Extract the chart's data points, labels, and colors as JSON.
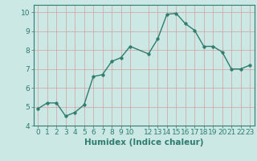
{
  "x": [
    0,
    1,
    2,
    3,
    4,
    5,
    6,
    7,
    8,
    9,
    10,
    12,
    13,
    14,
    15,
    16,
    17,
    18,
    19,
    20,
    21,
    22,
    23
  ],
  "y": [
    4.9,
    5.2,
    5.2,
    4.5,
    4.7,
    5.1,
    6.6,
    6.7,
    7.4,
    7.6,
    8.2,
    7.8,
    8.6,
    9.9,
    9.95,
    9.4,
    9.05,
    8.2,
    8.2,
    7.9,
    7.0,
    7.0,
    7.2
  ],
  "line_color": "#2e7d6e",
  "marker": "o",
  "marker_size": 2.5,
  "bg_color": "#cce8e4",
  "grid_color": "#b0d4d0",
  "xlabel": "Humidex (Indice chaleur)",
  "xlabel_fontsize": 7.5,
  "tick_fontsize": 6.5,
  "ylim": [
    4,
    10.4
  ],
  "xlim": [
    -0.5,
    23.5
  ],
  "yticks": [
    4,
    5,
    6,
    7,
    8,
    9,
    10
  ],
  "xticks": [
    0,
    1,
    2,
    3,
    4,
    5,
    6,
    7,
    8,
    9,
    10,
    12,
    13,
    14,
    15,
    16,
    17,
    18,
    19,
    20,
    21,
    22,
    23
  ],
  "xtick_labels": [
    "0",
    "1",
    "2",
    "3",
    "4",
    "5",
    "6",
    "7",
    "8",
    "9",
    "10",
    "12",
    "13",
    "14",
    "15",
    "16",
    "17",
    "18",
    "19",
    "20",
    "21",
    "22",
    "23"
  ],
  "line_width": 1.0
}
